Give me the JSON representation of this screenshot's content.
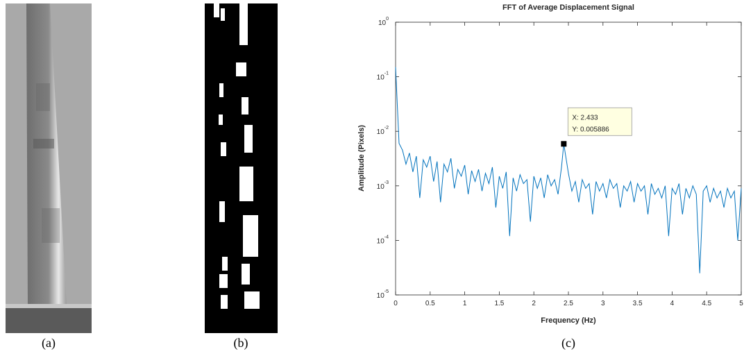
{
  "panels": {
    "captions": [
      "(a)",
      "(b)",
      "(c)"
    ]
  },
  "chart_data": {
    "type": "line",
    "title": "FFT of Average Displacement Signal",
    "x_label": "Frequency (Hz)",
    "y_label": "Amplitude (Pixels)",
    "log_y": true,
    "grid": false,
    "xlim": [
      0,
      5
    ],
    "xticks": [
      0,
      0.5,
      1,
      1.5,
      2,
      2.5,
      3,
      3.5,
      4,
      4.5,
      5
    ],
    "ylim": [
      1e-05,
      1
    ],
    "yticks": [
      {
        "value": 1e-05,
        "label": "10",
        "exponent": "-5"
      },
      {
        "value": 0.0001,
        "label": "10",
        "exponent": "-4"
      },
      {
        "value": 0.001,
        "label": "10",
        "exponent": "-3"
      },
      {
        "value": 0.01,
        "label": "10",
        "exponent": "-2"
      },
      {
        "value": 0.1,
        "label": "10",
        "exponent": "-1"
      },
      {
        "value": 1,
        "label": "10",
        "exponent": "0"
      }
    ],
    "series": [
      {
        "name": "Amplitude",
        "color": "#0072bd",
        "x": [
          0,
          0.05,
          0.1,
          0.15,
          0.2,
          0.25,
          0.3,
          0.35,
          0.4,
          0.45,
          0.5,
          0.55,
          0.6,
          0.65,
          0.7,
          0.75,
          0.8,
          0.85,
          0.9,
          0.95,
          1,
          1.05,
          1.1,
          1.15,
          1.2,
          1.25,
          1.3,
          1.35,
          1.4,
          1.45,
          1.5,
          1.55,
          1.6,
          1.65,
          1.7,
          1.75,
          1.8,
          1.85,
          1.9,
          1.95,
          2,
          2.05,
          2.1,
          2.15,
          2.2,
          2.25,
          2.3,
          2.35,
          2.4,
          2.433,
          2.5,
          2.55,
          2.6,
          2.65,
          2.7,
          2.75,
          2.8,
          2.85,
          2.9,
          2.95,
          3,
          3.05,
          3.1,
          3.15,
          3.2,
          3.25,
          3.3,
          3.35,
          3.4,
          3.45,
          3.5,
          3.55,
          3.6,
          3.65,
          3.7,
          3.75,
          3.8,
          3.85,
          3.9,
          3.95,
          4,
          4.05,
          4.1,
          4.15,
          4.2,
          4.25,
          4.3,
          4.35,
          4.4,
          4.45,
          4.5,
          4.55,
          4.6,
          4.65,
          4.7,
          4.75,
          4.8,
          4.85,
          4.9,
          4.95,
          5
        ],
        "values": [
          0.15,
          0.006,
          0.0045,
          0.0025,
          0.004,
          0.0018,
          0.0035,
          0.0006,
          0.003,
          0.0022,
          0.0035,
          0.0012,
          0.0028,
          0.0005,
          0.0025,
          0.0018,
          0.0032,
          0.0009,
          0.002,
          0.0015,
          0.0024,
          0.0007,
          0.0019,
          0.0012,
          0.002,
          0.0008,
          0.0017,
          0.0011,
          0.0022,
          0.0004,
          0.0015,
          0.0009,
          0.0018,
          0.00012,
          0.0014,
          0.0008,
          0.0016,
          0.0011,
          0.0013,
          0.00022,
          0.0015,
          0.0009,
          0.0014,
          0.0006,
          0.0016,
          0.001,
          0.0013,
          0.0007,
          0.0022,
          0.005886,
          0.0017,
          0.0008,
          0.0012,
          0.0005,
          0.0013,
          0.0009,
          0.0011,
          0.0003,
          0.0012,
          0.0008,
          0.0011,
          0.0006,
          0.0013,
          0.0009,
          0.0011,
          0.0004,
          0.001,
          0.0008,
          0.0012,
          0.0005,
          0.0011,
          0.0008,
          0.001,
          0.0003,
          0.0011,
          0.0007,
          0.0009,
          0.0006,
          0.001,
          0.00012,
          0.0009,
          0.0007,
          0.0011,
          0.0003,
          0.0009,
          0.0006,
          0.001,
          0.0007,
          2.5e-05,
          0.0008,
          0.001,
          0.0005,
          0.0009,
          0.0006,
          0.0008,
          0.0004,
          0.0009,
          0.0006,
          0.0008,
          0.0001,
          0.0009
        ]
      }
    ],
    "datatip": {
      "x": 2.433,
      "y": 0.005886,
      "labels": [
        "X: 2.433",
        "Y: 0.005886"
      ]
    }
  }
}
